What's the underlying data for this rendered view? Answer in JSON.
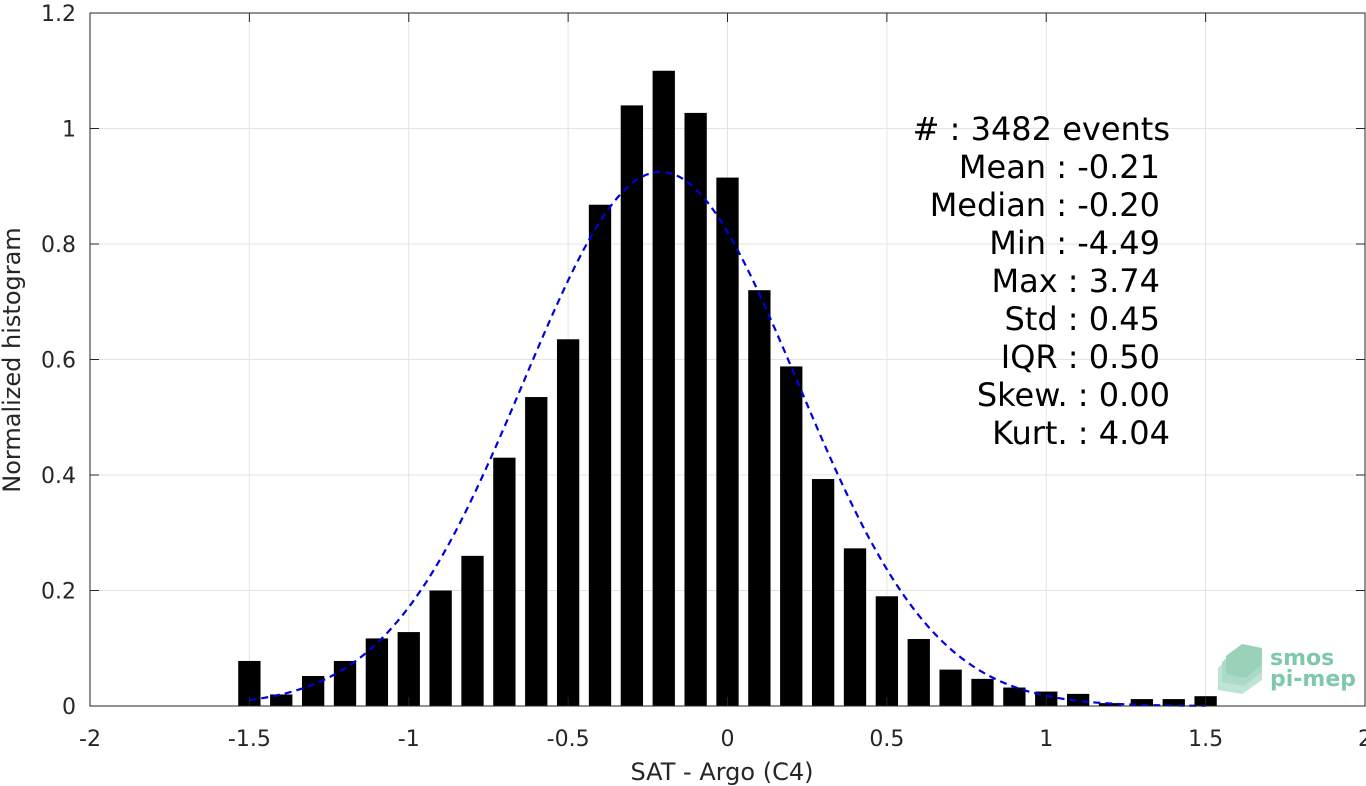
{
  "chart_data": {
    "type": "bar",
    "xlabel": "SAT - Argo (C4)",
    "ylabel": "Normalized histogram",
    "xlim": [
      -2,
      2
    ],
    "ylim": [
      0,
      1.2
    ],
    "xticks": [
      -2,
      -1.5,
      -1,
      -0.5,
      0,
      0.5,
      1,
      1.5,
      2
    ],
    "xtick_labels": [
      "-2",
      "-1.5",
      "-1",
      "-0.5",
      "0",
      "0.5",
      "1",
      "1.5",
      "2"
    ],
    "yticks": [
      0,
      0.2,
      0.4,
      0.6,
      0.8,
      1,
      1.2
    ],
    "ytick_labels": [
      "0",
      "0.2",
      "0.4",
      "0.6",
      "0.8",
      "1",
      "1.2"
    ],
    "grid": true,
    "bar_color": "#000000",
    "bar_width": 0.07,
    "x": [
      -1.5,
      -1.4,
      -1.3,
      -1.2,
      -1.1,
      -1.0,
      -0.9,
      -0.8,
      -0.7,
      -0.6,
      -0.5,
      -0.4,
      -0.3,
      -0.2,
      -0.1,
      0.0,
      0.1,
      0.2,
      0.3,
      0.4,
      0.5,
      0.6,
      0.7,
      0.8,
      0.9,
      1.0,
      1.1,
      1.2,
      1.3,
      1.4,
      1.5
    ],
    "values": [
      0.078,
      0.02,
      0.052,
      0.078,
      0.117,
      0.128,
      0.2,
      0.26,
      0.43,
      0.535,
      0.635,
      0.868,
      1.04,
      1.1,
      1.027,
      0.915,
      0.72,
      0.588,
      0.393,
      0.273,
      0.19,
      0.116,
      0.063,
      0.047,
      0.032,
      0.025,
      0.021,
      0.005,
      0.012,
      0.012,
      0.017
    ],
    "fit": {
      "kind": "gaussian",
      "mean": -0.21,
      "std": 0.43,
      "peak": 0.925,
      "x_range": [
        -1.5,
        1.5
      ],
      "color": "#0000e0",
      "style": "dashed"
    },
    "stats_lines": [
      "#  : 3482 events",
      "Mean : -0.21",
      "Median : -0.20",
      "Min : -4.49",
      "Max : 3.74",
      "Std : 0.45",
      "IQR : 0.50",
      "Skew. : 0.00",
      "Kurt. : 4.04"
    ],
    "logo": {
      "line1": "smos",
      "line2": "pi-mep",
      "color": "#7fc8a9"
    }
  }
}
